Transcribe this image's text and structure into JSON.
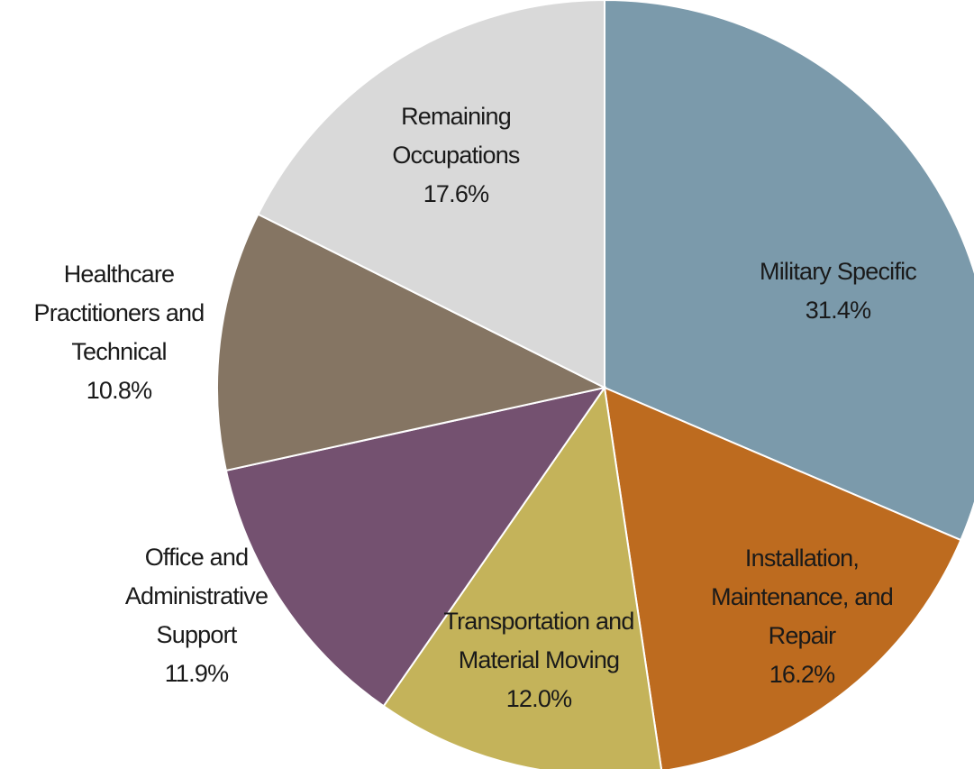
{
  "chart_data": {
    "type": "pie",
    "categories": [
      "Military Specific",
      "Installation, Maintenance, and Repair",
      "Transportation and Material Moving",
      "Office and Administrative Support",
      "Healthcare Practitioners and Technical",
      "Remaining Occupations"
    ],
    "values": [
      31.4,
      16.2,
      12.0,
      11.9,
      10.8,
      17.6
    ],
    "value_labels": [
      "31.4%",
      "16.2%",
      "12.0%",
      "11.9%",
      "10.8%",
      "17.6%"
    ],
    "colors": [
      "#7b9aab",
      "#bd6b1f",
      "#c4b35a",
      "#745170",
      "#857563",
      "#d9d9d9"
    ]
  }
}
